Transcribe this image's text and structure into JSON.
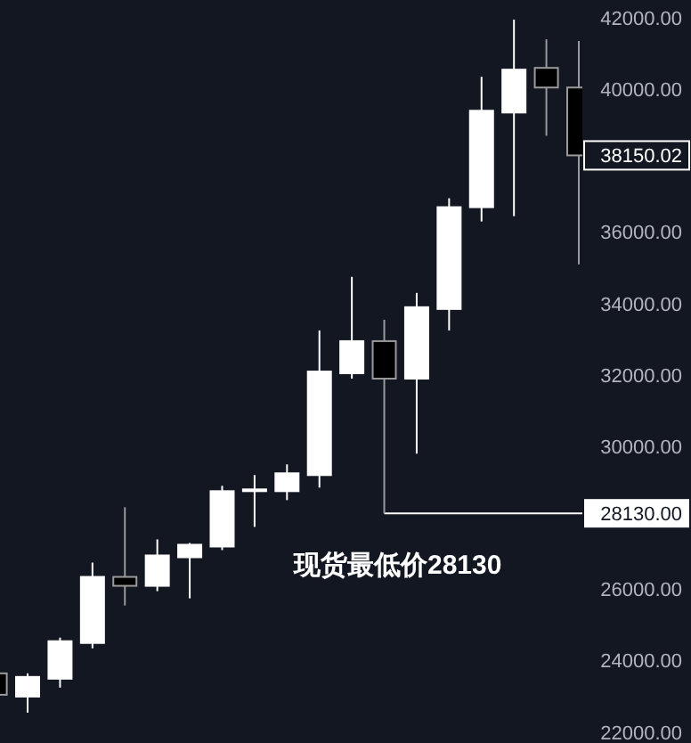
{
  "chart_data": {
    "type": "candlestick",
    "categories": [
      null,
      null,
      null,
      null,
      null,
      null,
      null,
      null,
      null,
      null,
      null,
      null,
      null,
      null,
      null,
      null,
      null,
      null,
      null
    ],
    "ohlc": [
      [
        23650,
        23700,
        23000,
        23050
      ],
      [
        23000,
        23650,
        22550,
        23550
      ],
      [
        23500,
        24650,
        23250,
        24550
      ],
      [
        24500,
        26750,
        24350,
        26350
      ],
      [
        26350,
        28300,
        25550,
        26100
      ],
      [
        26100,
        27400,
        25950,
        26950
      ],
      [
        26900,
        27300,
        25750,
        27250
      ],
      [
        27200,
        28900,
        27100,
        28750
      ],
      [
        28780,
        29200,
        27750,
        28800
      ],
      [
        28750,
        29500,
        28500,
        29250
      ],
      [
        29200,
        33250,
        28850,
        32100
      ],
      [
        32050,
        34750,
        31900,
        32950
      ],
      [
        32950,
        33550,
        28130,
        31900
      ],
      [
        31900,
        34300,
        29800,
        33900
      ],
      [
        33850,
        36950,
        33250,
        36700
      ],
      [
        36700,
        40350,
        36300,
        39400
      ],
      [
        39350,
        41950,
        36450,
        40550
      ],
      [
        40600,
        41400,
        38700,
        40050
      ],
      [
        40050,
        41350,
        35100,
        38150.02
      ]
    ],
    "ylim": [
      21700,
      42500
    ],
    "yticks": [
      {
        "value": 22000,
        "label": "22000.00"
      },
      {
        "value": 24000,
        "label": "24000.00"
      },
      {
        "value": 26000,
        "label": "26000.00"
      },
      {
        "value": 30000,
        "label": "30000.00"
      },
      {
        "value": 32000,
        "label": "32000.00"
      },
      {
        "value": 34000,
        "label": "34000.00"
      },
      {
        "value": 36000,
        "label": "36000.00"
      },
      {
        "value": 40000,
        "label": "40000.00"
      },
      {
        "value": 42000,
        "label": "42000.00"
      }
    ],
    "ref_lines": [
      {
        "axis": "y",
        "value": 28130,
        "label": "28130.00",
        "color": "#ffffff"
      }
    ],
    "annotations": [
      "现货最低价28130",
      "38150.02"
    ],
    "grid": false
  }
}
